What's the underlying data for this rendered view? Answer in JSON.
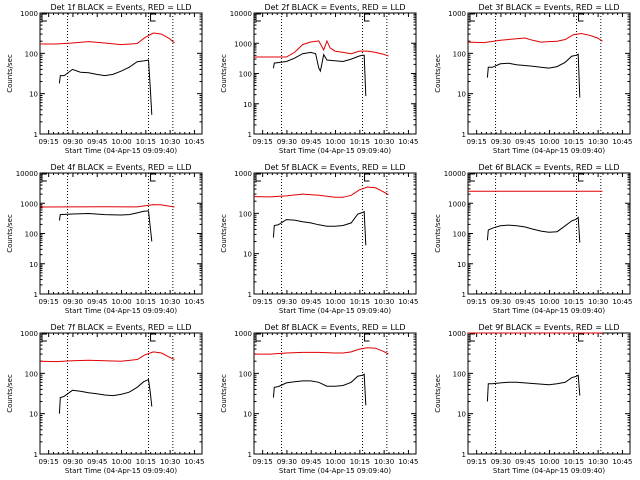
{
  "colors": {
    "events": "#000000",
    "lld": "#e00000"
  },
  "chart_data": [
    {
      "type": "line",
      "title": "Det 1f BLACK = Events, RED = LLD",
      "xlabel": "Start Time (04-Apr-15 09:09:40)",
      "ylabel": "Counts/sec",
      "yscale": "log",
      "ylim": [
        1,
        1000
      ],
      "yticks": [
        "1",
        "10",
        "100",
        "1000"
      ],
      "xticks": [
        "09:15",
        "09:30",
        "09:45",
        "10:00",
        "10:15",
        "10:30",
        "10:45"
      ],
      "xlim_min": [
        0,
        100
      ],
      "vlines_min": [
        17,
        67,
        82
      ],
      "e_markers_min": [
        0,
        67
      ],
      "series": [
        {
          "name": "LLD",
          "color": "red",
          "x": [
            0,
            10,
            20,
            30,
            40,
            50,
            60,
            65,
            70,
            75,
            80,
            83
          ],
          "y": [
            170,
            170,
            180,
            195,
            180,
            165,
            175,
            250,
            320,
            300,
            230,
            180
          ]
        },
        {
          "name": "Events",
          "color": "black",
          "x": [
            12,
            12.5,
            15,
            20,
            25,
            30,
            35,
            40,
            45,
            50,
            55,
            60,
            64,
            67,
            68,
            69
          ],
          "y": [
            18,
            28,
            28,
            40,
            34,
            33,
            30,
            28,
            30,
            36,
            45,
            62,
            65,
            68,
            15,
            3
          ]
        }
      ]
    },
    {
      "type": "line",
      "title": "Det 2f BLACK = Events, RED = LLD",
      "xlabel": "Start Time (04-Apr-15 09:09:40)",
      "ylabel": "Counts/sec",
      "yscale": "log",
      "ylim": [
        1,
        10000
      ],
      "yticks": [
        "1",
        "10",
        "100",
        "1000",
        "10000"
      ],
      "xticks": [
        "09:15",
        "09:30",
        "09:45",
        "10:00",
        "10:15",
        "10:30",
        "10:45"
      ],
      "xlim_min": [
        0,
        100
      ],
      "vlines_min": [
        17,
        67,
        82
      ],
      "e_markers_min": [
        0,
        67
      ],
      "series": [
        {
          "name": "LLD",
          "color": "red",
          "x": [
            0,
            10,
            20,
            25,
            30,
            35,
            40,
            43,
            45,
            47,
            50,
            55,
            60,
            65,
            70,
            75,
            80,
            83
          ],
          "y": [
            350,
            350,
            350,
            500,
            900,
            1100,
            1200,
            600,
            1200,
            700,
            550,
            500,
            450,
            550,
            550,
            500,
            430,
            380
          ]
        },
        {
          "name": "Events",
          "color": "black",
          "x": [
            12,
            12.5,
            20,
            25,
            30,
            35,
            38,
            40,
            41,
            43,
            45,
            48,
            55,
            60,
            65,
            67,
            68,
            69
          ],
          "y": [
            150,
            220,
            250,
            320,
            450,
            500,
            450,
            150,
            120,
            420,
            280,
            270,
            250,
            300,
            380,
            400,
            400,
            18
          ]
        }
      ]
    },
    {
      "type": "line",
      "title": "Det 3f BLACK = Events, RED = LLD",
      "xlabel": "Start Time (04-Apr-15 09:09:40)",
      "ylabel": "Counts/sec",
      "yscale": "log",
      "ylim": [
        1,
        1000
      ],
      "yticks": [
        "1",
        "10",
        "100",
        "1000"
      ],
      "xticks": [
        "09:15",
        "09:30",
        "09:45",
        "10:00",
        "10:15",
        "10:30",
        "10:45"
      ],
      "xlim_min": [
        0,
        100
      ],
      "vlines_min": [
        17,
        67,
        82
      ],
      "e_markers_min": [
        0,
        67
      ],
      "series": [
        {
          "name": "LLD",
          "color": "red",
          "x": [
            0,
            10,
            20,
            30,
            35,
            40,
            45,
            50,
            55,
            60,
            65,
            70,
            75,
            80,
            83
          ],
          "y": [
            190,
            185,
            210,
            230,
            240,
            210,
            190,
            195,
            200,
            220,
            290,
            310,
            280,
            240,
            200
          ]
        },
        {
          "name": "Events",
          "color": "black",
          "x": [
            12,
            12.5,
            15,
            20,
            25,
            30,
            35,
            40,
            45,
            50,
            55,
            60,
            64,
            67,
            68,
            69
          ],
          "y": [
            25,
            45,
            45,
            55,
            57,
            52,
            50,
            48,
            45,
            43,
            47,
            60,
            85,
            90,
            95,
            8
          ]
        }
      ]
    },
    {
      "type": "line",
      "title": "Det 4f BLACK = Events, RED = LLD",
      "xlabel": "Start Time (04-Apr-15 09:09:40)",
      "ylabel": "Counts/sec",
      "yscale": "log",
      "ylim": [
        1,
        10000
      ],
      "yticks": [
        "1",
        "10",
        "100",
        "1000",
        "10000"
      ],
      "xticks": [
        "09:15",
        "09:30",
        "09:45",
        "10:00",
        "10:15",
        "10:30",
        "10:45"
      ],
      "xlim_min": [
        0,
        100
      ],
      "vlines_min": [
        17,
        67,
        82
      ],
      "e_markers_min": [
        0,
        67
      ],
      "series": [
        {
          "name": "LLD",
          "color": "red",
          "x": [
            0,
            20,
            40,
            55,
            60,
            65,
            70,
            75,
            80,
            83
          ],
          "y": [
            750,
            760,
            770,
            760,
            760,
            830,
            900,
            880,
            800,
            750
          ]
        },
        {
          "name": "Events",
          "color": "black",
          "x": [
            12,
            12.5,
            20,
            30,
            40,
            50,
            55,
            60,
            64,
            67,
            68,
            69
          ],
          "y": [
            270,
            420,
            440,
            460,
            420,
            410,
            420,
            480,
            540,
            560,
            170,
            55
          ]
        }
      ]
    },
    {
      "type": "line",
      "title": "Det 5f BLACK = Events, RED = LLD",
      "xlabel": "Start Time (04-Apr-15 09:09:40)",
      "ylabel": "Counts/sec",
      "yscale": "log",
      "ylim": [
        1,
        1000
      ],
      "yticks": [
        "1",
        "10",
        "100",
        "1000"
      ],
      "xticks": [
        "09:15",
        "09:30",
        "09:45",
        "10:00",
        "10:15",
        "10:30",
        "10:45"
      ],
      "xlim_min": [
        0,
        100
      ],
      "vlines_min": [
        17,
        67,
        82
      ],
      "e_markers_min": [
        0,
        67
      ],
      "series": [
        {
          "name": "LLD",
          "color": "red",
          "x": [
            0,
            10,
            20,
            30,
            40,
            50,
            55,
            60,
            65,
            70,
            75,
            80,
            83
          ],
          "y": [
            260,
            255,
            270,
            300,
            280,
            250,
            250,
            280,
            380,
            450,
            430,
            340,
            290
          ]
        },
        {
          "name": "Events",
          "color": "black",
          "x": [
            12,
            12.5,
            15,
            20,
            25,
            30,
            35,
            40,
            45,
            50,
            55,
            60,
            64,
            67,
            68,
            69
          ],
          "y": [
            25,
            50,
            52,
            70,
            68,
            62,
            58,
            52,
            48,
            48,
            50,
            58,
            95,
            105,
            110,
            16
          ]
        }
      ]
    },
    {
      "type": "line",
      "title": "Det 6f BLACK = Events, RED = LLD",
      "xlabel": "Start Time (04-Apr-15 09:09:40)",
      "ylabel": "Counts/sec",
      "yscale": "log",
      "ylim": [
        1,
        10000
      ],
      "yticks": [
        "1",
        "10",
        "100",
        "1000",
        "10000"
      ],
      "xticks": [
        "09:15",
        "09:30",
        "09:45",
        "10:00",
        "10:15",
        "10:30",
        "10:45"
      ],
      "xlim_min": [
        0,
        100
      ],
      "vlines_min": [
        17,
        67,
        82
      ],
      "e_markers_min": [
        0,
        67
      ],
      "series": [
        {
          "name": "LLD",
          "color": "red",
          "x": [
            0,
            83
          ],
          "y": [
            2500,
            2500
          ]
        },
        {
          "name": "Events",
          "color": "black",
          "x": [
            12,
            12.5,
            15,
            20,
            25,
            30,
            35,
            40,
            45,
            50,
            55,
            60,
            64,
            67,
            68,
            69
          ],
          "y": [
            60,
            130,
            150,
            180,
            190,
            180,
            165,
            140,
            120,
            110,
            115,
            180,
            260,
            300,
            340,
            50
          ]
        }
      ]
    },
    {
      "type": "line",
      "title": "Det 7f BLACK = Events, RED = LLD",
      "xlabel": "Start Time (04-Apr-15 09:09:40)",
      "ylabel": "Counts/sec",
      "yscale": "log",
      "ylim": [
        1,
        1000
      ],
      "yticks": [
        "1",
        "10",
        "100",
        "1000"
      ],
      "xticks": [
        "09:15",
        "09:30",
        "09:45",
        "10:00",
        "10:15",
        "10:30",
        "10:45"
      ],
      "xlim_min": [
        0,
        100
      ],
      "vlines_min": [
        17,
        67,
        82
      ],
      "e_markers_min": [
        0,
        67
      ],
      "series": [
        {
          "name": "LLD",
          "color": "red",
          "x": [
            0,
            10,
            20,
            30,
            40,
            50,
            60,
            65,
            70,
            75,
            80,
            83
          ],
          "y": [
            200,
            195,
            205,
            210,
            205,
            200,
            220,
            290,
            340,
            320,
            250,
            220
          ]
        },
        {
          "name": "Events",
          "color": "black",
          "x": [
            12,
            12.5,
            15,
            20,
            25,
            30,
            35,
            40,
            45,
            50,
            55,
            60,
            64,
            67,
            68,
            69
          ],
          "y": [
            10,
            25,
            27,
            38,
            36,
            33,
            31,
            29,
            28,
            30,
            34,
            45,
            62,
            70,
            35,
            15
          ]
        }
      ]
    },
    {
      "type": "line",
      "title": "Det 8f BLACK = Events, RED = LLD",
      "xlabel": "Start Time (04-Apr-15 09:09:40)",
      "ylabel": "Counts/sec",
      "yscale": "log",
      "ylim": [
        1,
        1000
      ],
      "yticks": [
        "1",
        "10",
        "100",
        "1000"
      ],
      "xticks": [
        "09:15",
        "09:30",
        "09:45",
        "10:00",
        "10:15",
        "10:30",
        "10:45"
      ],
      "xlim_min": [
        0,
        100
      ],
      "vlines_min": [
        17,
        67,
        82
      ],
      "e_markers_min": [
        0,
        67
      ],
      "series": [
        {
          "name": "LLD",
          "color": "red",
          "x": [
            0,
            10,
            20,
            30,
            40,
            50,
            55,
            60,
            65,
            70,
            75,
            80,
            83
          ],
          "y": [
            300,
            300,
            320,
            330,
            330,
            320,
            320,
            340,
            400,
            430,
            420,
            350,
            300
          ]
        },
        {
          "name": "Events",
          "color": "black",
          "x": [
            12,
            12.5,
            15,
            20,
            25,
            30,
            35,
            40,
            45,
            50,
            55,
            60,
            64,
            67,
            68,
            69
          ],
          "y": [
            25,
            45,
            47,
            58,
            62,
            65,
            65,
            60,
            48,
            48,
            50,
            60,
            85,
            90,
            95,
            16
          ]
        }
      ]
    },
    {
      "type": "line",
      "title": "Det 9f BLACK = Events, RED = LLD",
      "xlabel": "Start Time (04-Apr-15 09:09:40)",
      "ylabel": "Counts/sec",
      "yscale": "log",
      "ylim": [
        1,
        1000
      ],
      "yticks": [
        "1",
        "10",
        "100",
        "1000"
      ],
      "xticks": [
        "09:15",
        "09:30",
        "09:45",
        "10:00",
        "10:15",
        "10:30",
        "10:45"
      ],
      "xlim_min": [
        0,
        100
      ],
      "vlines_min": [
        17,
        67,
        82
      ],
      "e_markers_min": [
        0,
        67
      ],
      "series": [
        {
          "name": "LLD",
          "color": "red",
          "x": [
            0,
            83
          ],
          "y": [
            1000,
            1000
          ]
        },
        {
          "name": "Events",
          "color": "black",
          "x": [
            12,
            12.5,
            15,
            20,
            25,
            30,
            35,
            40,
            45,
            50,
            55,
            60,
            64,
            67,
            68,
            69
          ],
          "y": [
            20,
            55,
            55,
            58,
            60,
            60,
            58,
            56,
            54,
            52,
            55,
            60,
            78,
            85,
            90,
            28
          ]
        }
      ]
    }
  ]
}
